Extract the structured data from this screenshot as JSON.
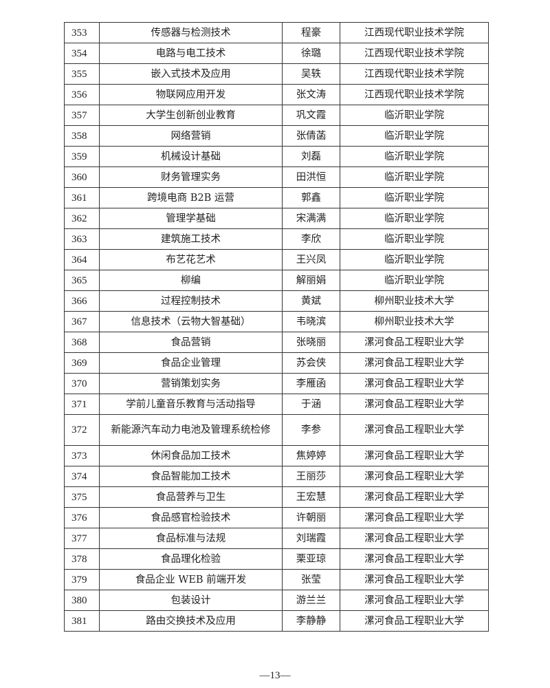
{
  "rows": [
    {
      "no": "353",
      "course": "传感器与检测技术",
      "person": "程豪",
      "school": "江西现代职业技术学院"
    },
    {
      "no": "354",
      "course": "电路与电工技术",
      "person": "徐璐",
      "school": "江西现代职业技术学院"
    },
    {
      "no": "355",
      "course": "嵌入式技术及应用",
      "person": "吴轶",
      "school": "江西现代职业技术学院"
    },
    {
      "no": "356",
      "course": "物联网应用开发",
      "person": "张文涛",
      "school": "江西现代职业技术学院"
    },
    {
      "no": "357",
      "course": "大学生创新创业教育",
      "person": "巩文霞",
      "school": "临沂职业学院"
    },
    {
      "no": "358",
      "course": "网络营销",
      "person": "张倩菡",
      "school": "临沂职业学院"
    },
    {
      "no": "359",
      "course": "机械设计基础",
      "person": "刘磊",
      "school": "临沂职业学院"
    },
    {
      "no": "360",
      "course": "财务管理实务",
      "person": "田洪恒",
      "school": "临沂职业学院"
    },
    {
      "no": "361",
      "course": "跨境电商 B2B 运营",
      "person": "郭鑫",
      "school": "临沂职业学院"
    },
    {
      "no": "362",
      "course": "管理学基础",
      "person": "宋满满",
      "school": "临沂职业学院"
    },
    {
      "no": "363",
      "course": "建筑施工技术",
      "person": "李欣",
      "school": "临沂职业学院"
    },
    {
      "no": "364",
      "course": "布艺花艺术",
      "person": "王兴凤",
      "school": "临沂职业学院"
    },
    {
      "no": "365",
      "course": "柳编",
      "person": "解丽娟",
      "school": "临沂职业学院"
    },
    {
      "no": "366",
      "course": "过程控制技术",
      "person": "黄斌",
      "school": "柳州职业技术大学"
    },
    {
      "no": "367",
      "course": "信息技术（云物大智基础）",
      "person": "韦晓滨",
      "school": "柳州职业技术大学"
    },
    {
      "no": "368",
      "course": "食品营销",
      "person": "张晓丽",
      "school": "漯河食品工程职业大学"
    },
    {
      "no": "369",
      "course": "食品企业管理",
      "person": "苏会侠",
      "school": "漯河食品工程职业大学"
    },
    {
      "no": "370",
      "course": "营销策划实务",
      "person": "李雁函",
      "school": "漯河食品工程职业大学"
    },
    {
      "no": "371",
      "course": "学前儿童音乐教育与活动指导",
      "person": "于涵",
      "school": "漯河食品工程职业大学"
    },
    {
      "no": "372",
      "course": "新能源汽车动力电池及管理系统检修",
      "person": "李参",
      "school": "漯河食品工程职业大学"
    },
    {
      "no": "373",
      "course": "休闲食品加工技术",
      "person": "焦婷婷",
      "school": "漯河食品工程职业大学"
    },
    {
      "no": "374",
      "course": "食品智能加工技术",
      "person": "王丽莎",
      "school": "漯河食品工程职业大学"
    },
    {
      "no": "375",
      "course": "食品营养与卫生",
      "person": "王宏慧",
      "school": "漯河食品工程职业大学"
    },
    {
      "no": "376",
      "course": "食品感官检验技术",
      "person": "许朝丽",
      "school": "漯河食品工程职业大学"
    },
    {
      "no": "377",
      "course": "食品标准与法规",
      "person": "刘瑞霞",
      "school": "漯河食品工程职业大学"
    },
    {
      "no": "378",
      "course": "食品理化检验",
      "person": "栗亚琼",
      "school": "漯河食品工程职业大学"
    },
    {
      "no": "379",
      "course": "食品企业 WEB 前端开发",
      "person": "张莹",
      "school": "漯河食品工程职业大学"
    },
    {
      "no": "380",
      "course": "包装设计",
      "person": "游兰兰",
      "school": "漯河食品工程职业大学"
    },
    {
      "no": "381",
      "course": "路由交换技术及应用",
      "person": "李静静",
      "school": "漯河食品工程职业大学"
    }
  ],
  "page_number": "—13—"
}
